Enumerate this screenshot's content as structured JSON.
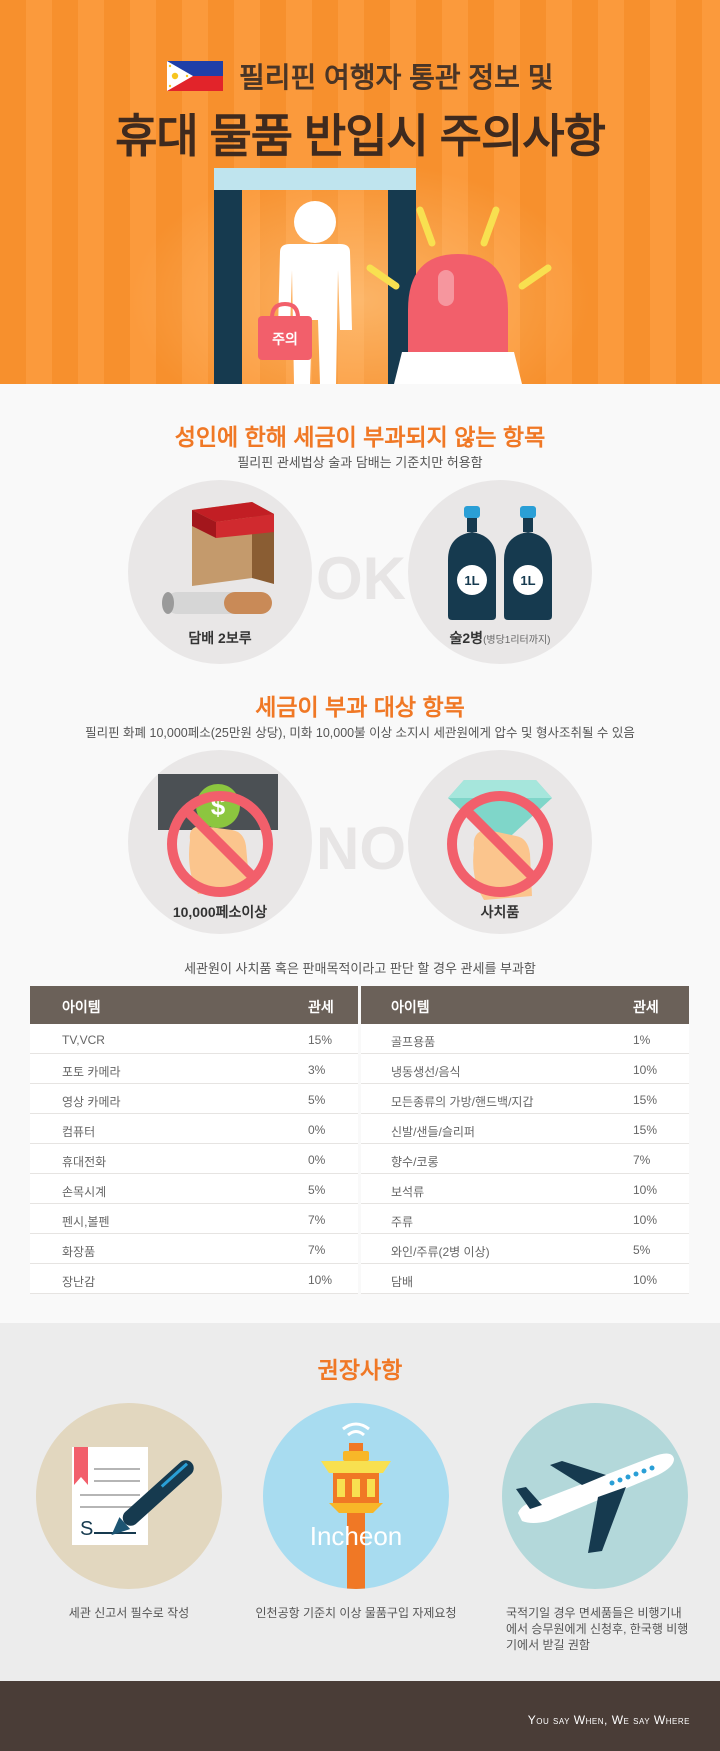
{
  "hero": {
    "line1": "필리핀 여행자 통관 정보 및",
    "line2": "휴대 물품 반입시 주의사항",
    "bag_label": "주의",
    "flag_icon": "philippines-flag-icon",
    "colors": {
      "orange": "#f7902d",
      "siren": "#f25f6b",
      "gate": "#163a4f"
    }
  },
  "taxfree": {
    "title": "성인에 한해 세금이 부과되지 않는 항목",
    "subtitle": "필리핀 관세법상 술과 담배는 기준치만 허용함",
    "divider_word": "OK",
    "items": [
      {
        "label": "담배 2보루",
        "note": "",
        "icon": "cigarette-icon"
      },
      {
        "label": "술2병",
        "note": "(병당1리터까지)",
        "icon": "liquor-bottle-icon",
        "bottle_label": "1L"
      }
    ]
  },
  "taxable": {
    "title": "세금이 부과 대상 항목",
    "subtitle": "필리핀 화폐 10,000페소(25만원 상당), 미화 10,000불 이상 소지시 세관원에게 압수 및 형사조취될 수 있음",
    "divider_word": "NO",
    "items": [
      {
        "label": "10,000페소이상",
        "icon": "money-prohibited-icon"
      },
      {
        "label": "사치품",
        "icon": "diamond-prohibited-icon"
      }
    ]
  },
  "table": {
    "note": "세관원이 사치품 혹은 판매목적이라고 판단 할 경우 관세를 부과함",
    "header_item": "아이템",
    "header_tax": "관세",
    "left": [
      {
        "item": "TV,VCR",
        "tax": "15%"
      },
      {
        "item": "포토 카메라",
        "tax": "3%"
      },
      {
        "item": "영상 카메라",
        "tax": "5%"
      },
      {
        "item": "컴퓨터",
        "tax": "0%"
      },
      {
        "item": "휴대전화",
        "tax": "0%"
      },
      {
        "item": "손목시계",
        "tax": "5%"
      },
      {
        "item": "펜시,볼펜",
        "tax": "7%"
      },
      {
        "item": "화장품",
        "tax": "7%"
      },
      {
        "item": "장난감",
        "tax": "10%"
      }
    ],
    "right": [
      {
        "item": "골프용품",
        "tax": "1%"
      },
      {
        "item": "냉동생선/음식",
        "tax": "10%"
      },
      {
        "item": "모든종류의 가방/핸드백/지갑",
        "tax": "15%"
      },
      {
        "item": "신발/샌들/슬리퍼",
        "tax": "15%"
      },
      {
        "item": "향수/코롱",
        "tax": "7%"
      },
      {
        "item": "보석류",
        "tax": "10%"
      },
      {
        "item": "주류",
        "tax": "10%"
      },
      {
        "item": "와인/주류(2병 이상)",
        "tax": "5%"
      },
      {
        "item": "담배",
        "tax": "10%"
      }
    ]
  },
  "recommend": {
    "title": "권장사항",
    "items": [
      {
        "caption": "세관 신고서 필수로 작성",
        "icon": "declaration-form-pen-icon",
        "form_letter": "S"
      },
      {
        "caption": "인천공항 기준치 이상 물품구입 자제요청",
        "icon": "control-tower-icon",
        "tower_label": "Incheon"
      },
      {
        "caption": "국적기일 경우 면세품들은 비행기내에서 승무원에게 신청후, 한국행 비행기에서 받길 권함",
        "icon": "airplane-icon"
      }
    ]
  },
  "footer": {
    "slogan": "You say When, We say Where"
  }
}
